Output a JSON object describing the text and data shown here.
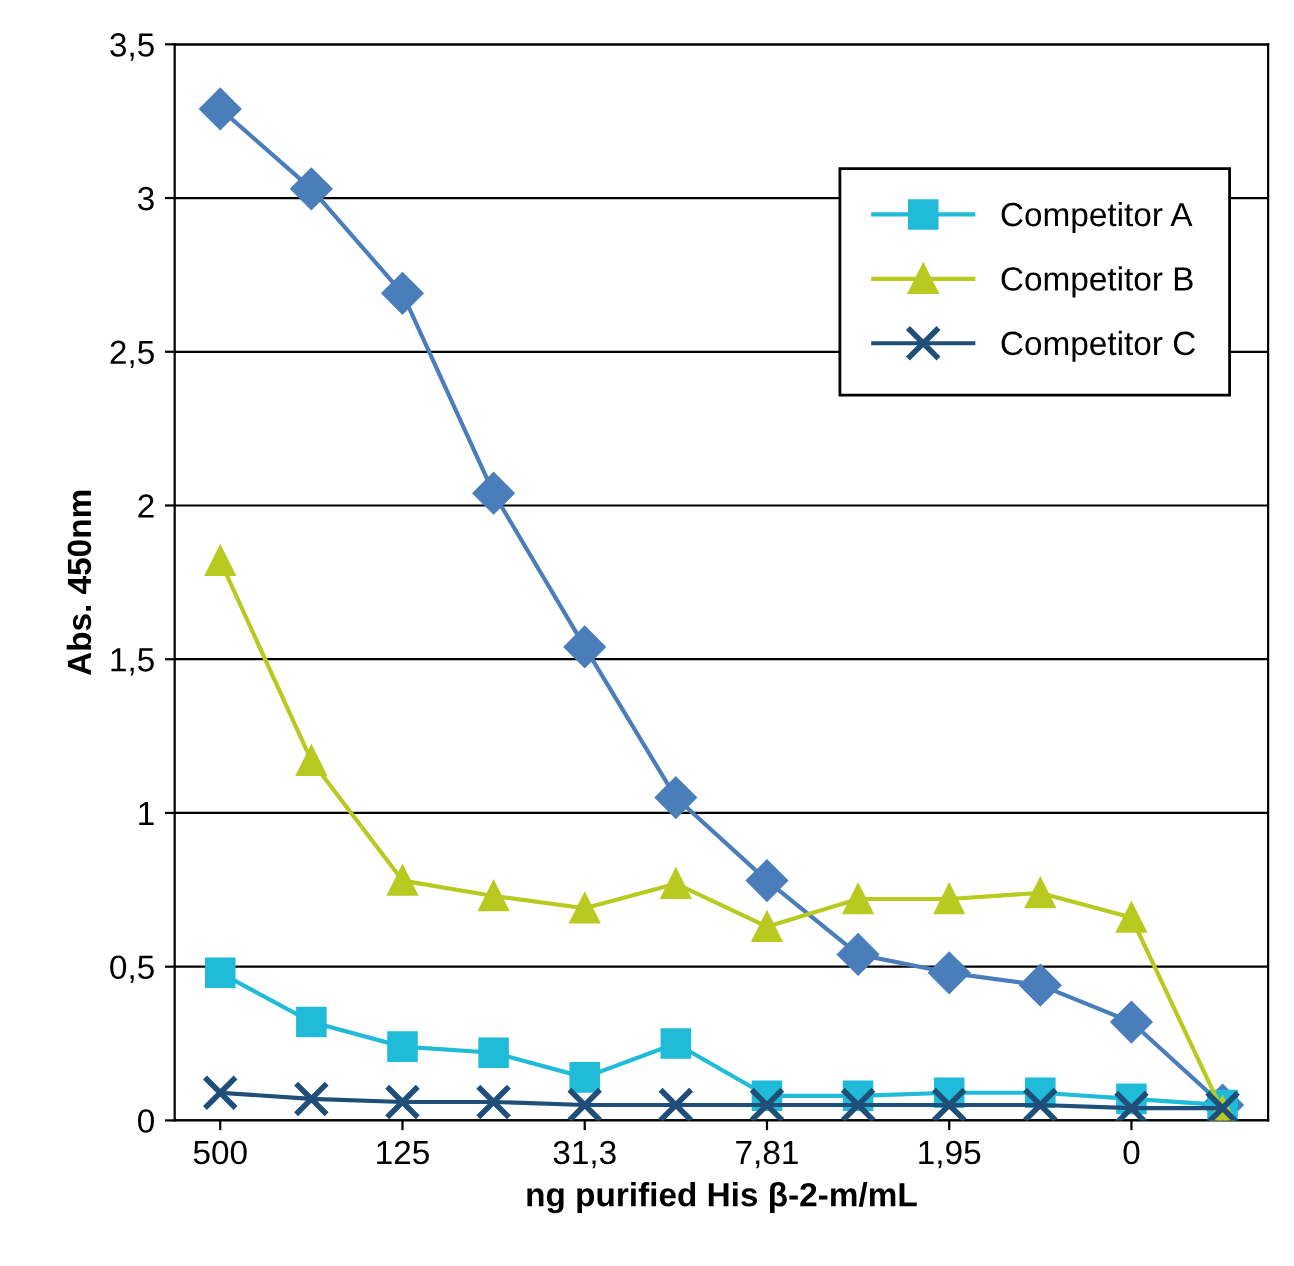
{
  "chart_data": {
    "type": "line",
    "xlabel": "ng purified His β-2-m/mL",
    "ylabel": "Abs. 450nm",
    "categories": [
      "500",
      null,
      "125",
      null,
      "31,3",
      null,
      "7,81",
      null,
      "1,95",
      null,
      "0",
      null
    ],
    "series": [
      {
        "color": "#4a7ebb",
        "marker": "diamond",
        "values": [
          3.29,
          3.03,
          2.69,
          2.04,
          1.54,
          1.05,
          0.78,
          0.54,
          0.48,
          0.44,
          0.32,
          0.05
        ]
      },
      {
        "name": "Competitor A",
        "color": "#1fbbd8",
        "marker": "square",
        "values": [
          0.48,
          0.32,
          0.24,
          0.22,
          0.14,
          0.25,
          0.08,
          0.08,
          0.09,
          0.09,
          0.07,
          0.05
        ]
      },
      {
        "name": "Competitor B",
        "color": "#b8c920",
        "marker": "triangle",
        "values": [
          1.82,
          1.17,
          0.78,
          0.73,
          0.69,
          0.77,
          0.63,
          0.72,
          0.72,
          0.74,
          0.66,
          0.03
        ]
      },
      {
        "name": "Competitor C",
        "color": "#1f4e79",
        "marker": "cross",
        "values": [
          0.09,
          0.07,
          0.06,
          0.06,
          0.05,
          0.05,
          0.05,
          0.05,
          0.05,
          0.05,
          0.04,
          0.04
        ]
      }
    ],
    "ylim": [
      0,
      3.5
    ],
    "yticks": [
      0,
      {
        "value": 0.5,
        "label": "0,5"
      },
      1,
      {
        "value": 1.5,
        "label": "1,5"
      },
      2,
      {
        "value": 2.5,
        "label": "2,5"
      },
      3,
      {
        "value": 3.5,
        "label": "3,5"
      }
    ],
    "grid": "y",
    "legend": "top right",
    "line_style": "solid"
  }
}
